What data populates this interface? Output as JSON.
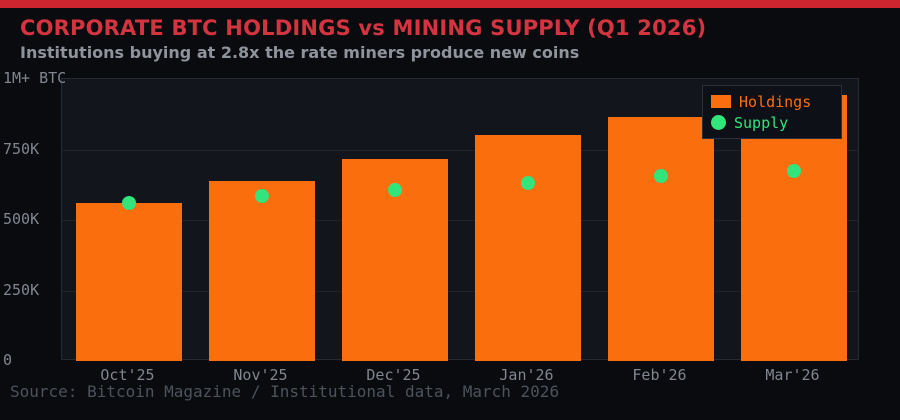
{
  "header": {
    "title": "CORPORATE BTC HOLDINGS vs MINING SUPPLY (Q1 2026)",
    "subtitle": "Institutions buying at 2.8x the rate miners produce new coins"
  },
  "footer": {
    "source": "Source: Bitcoin Magazine / Institutional data, March 2026"
  },
  "colors": {
    "top_strip": "#cc2530",
    "title_red": "#d43440",
    "subtitle_gray": "#8f939c",
    "tick_gray": "#81868f",
    "source_gray": "#4d535c",
    "bar_orange": "#fb6e0e",
    "dot_green": "#31e57c",
    "page_bg": "#0a0b0e",
    "plot_bg": "#13151d",
    "grid_line": "#21242d",
    "legend_bg": "#0d1016",
    "legend_border": "#2b303b"
  },
  "chart_data": {
    "type": "bar",
    "title": "CORPORATE BTC HOLDINGS vs MINING SUPPLY (Q1 2026)",
    "subtitle": "Institutions buying at 2.8x the rate miners produce new coins",
    "categories": [
      "Oct'25",
      "Nov'25",
      "Dec'25",
      "Jan'26",
      "Feb'26",
      "Mar'26"
    ],
    "series": [
      {
        "name": "Holdings",
        "type": "bar",
        "color": "#fb6e0e",
        "values": [
          560000,
          640000,
          715000,
          800000,
          865000,
          945000
        ]
      },
      {
        "name": "Supply",
        "type": "scatter",
        "color": "#31e57c",
        "values": [
          560000,
          585000,
          605000,
          630000,
          655000,
          675000
        ]
      }
    ],
    "ylim": [
      0,
      1000000
    ],
    "yticks": [
      {
        "value": 1000000,
        "label": "1M+ BTC"
      },
      {
        "value": 750000,
        "label": "750K"
      },
      {
        "value": 500000,
        "label": "500K"
      },
      {
        "value": 250000,
        "label": "250K"
      },
      {
        "value": 0,
        "label": "0"
      }
    ],
    "grid": true,
    "legend_position": "top-right",
    "units": "BTC"
  }
}
